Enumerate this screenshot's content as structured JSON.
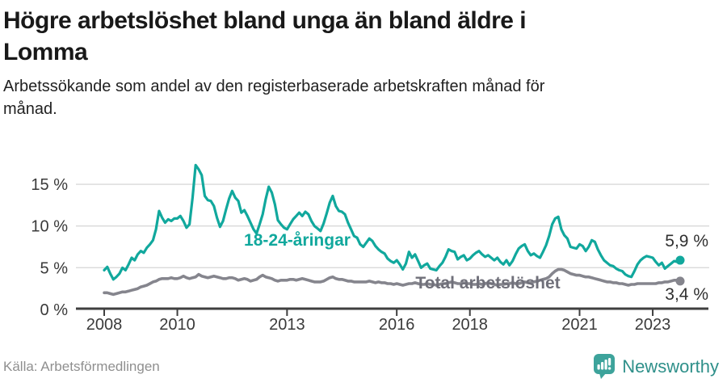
{
  "header": {
    "title": "Högre arbetslöshet bland unga än bland äldre i\nLomma",
    "subtitle": "Arbetssökande som andel av den registerbaserade arbetskraften månad för\nmånad."
  },
  "footer": {
    "source": "Källa: Arbetsförmedlingen",
    "logo_name": "Newsworthy",
    "logo_icon": "newsworthy-bubble-chart-icon"
  },
  "colors": {
    "youth_line": "#11a89d",
    "total_line": "#85858d",
    "total_label": "#70707a",
    "grid": "#d9d9d9",
    "axis": "#3f3f3f",
    "value_label": "#303030",
    "logo_bubble": "#3da39b",
    "logo_text": "#2f908a"
  },
  "chart_data": {
    "type": "line",
    "title": "Arbetssökande som andel av den registerbaserade arbetskraften månad för månad",
    "x_start": "2008-01",
    "x_end": "2023-10",
    "x_unit": "month",
    "ylim": [
      0,
      18
    ],
    "grid": "horizontal",
    "legend_position": "inline-labels",
    "y_ticks": [
      {
        "value": 0,
        "label": "0 %"
      },
      {
        "value": 5,
        "label": "5 %"
      },
      {
        "value": 10,
        "label": "10 %"
      },
      {
        "value": 15,
        "label": "15 %"
      }
    ],
    "x_ticks": [
      {
        "year": 2008,
        "label": "2008"
      },
      {
        "year": 2010,
        "label": "2010"
      },
      {
        "year": 2013,
        "label": "2013"
      },
      {
        "year": 2016,
        "label": "2016"
      },
      {
        "year": 2018,
        "label": "2018"
      },
      {
        "year": 2021,
        "label": "2021"
      },
      {
        "year": 2023,
        "label": "2023"
      }
    ],
    "series": [
      {
        "name": "18-24-åringar",
        "end_label": "5,9 %",
        "end_value": 5.9,
        "values": [
          4.7,
          5.1,
          4.3,
          3.6,
          3.9,
          4.3,
          5.0,
          4.7,
          5.4,
          6.2,
          5.9,
          6.6,
          7.0,
          6.8,
          7.4,
          7.8,
          8.3,
          9.6,
          11.8,
          11.0,
          10.4,
          10.8,
          10.6,
          10.9,
          10.9,
          11.2,
          10.6,
          9.8,
          10.2,
          13.4,
          17.3,
          16.8,
          16.1,
          13.6,
          13.1,
          13.0,
          12.4,
          11.0,
          9.9,
          10.6,
          12.0,
          13.3,
          14.2,
          13.4,
          13.0,
          11.6,
          11.9,
          11.2,
          10.4,
          9.6,
          9.1,
          10.2,
          11.4,
          13.2,
          14.7,
          14.0,
          12.6,
          10.7,
          10.2,
          9.8,
          9.6,
          10.2,
          10.8,
          11.2,
          11.6,
          11.2,
          11.7,
          11.4,
          10.6,
          10.0,
          9.7,
          9.4,
          10.3,
          11.5,
          12.8,
          13.6,
          12.4,
          11.8,
          11.7,
          11.4,
          10.4,
          9.6,
          8.8,
          8.6,
          7.8,
          7.5,
          8.0,
          8.5,
          8.2,
          7.6,
          7.2,
          6.9,
          6.7,
          6.1,
          5.8,
          5.6,
          5.9,
          5.4,
          4.8,
          5.5,
          6.9,
          6.2,
          6.6,
          5.8,
          5.0,
          5.3,
          5.5,
          4.9,
          4.8,
          4.7,
          5.2,
          5.6,
          6.3,
          7.2,
          7.0,
          6.9,
          6.0,
          6.3,
          6.5,
          5.9,
          6.1,
          6.5,
          6.8,
          7.0,
          6.6,
          6.3,
          6.5,
          6.2,
          5.9,
          6.2,
          5.7,
          5.4,
          5.9,
          5.3,
          5.8,
          6.6,
          7.3,
          7.6,
          7.8,
          7.0,
          6.5,
          6.7,
          6.4,
          6.2,
          6.9,
          7.7,
          8.8,
          10.2,
          10.9,
          11.1,
          9.6,
          8.9,
          8.5,
          7.5,
          7.4,
          7.3,
          7.8,
          7.6,
          7.0,
          7.5,
          8.3,
          8.1,
          7.2,
          6.5,
          5.9,
          5.6,
          5.3,
          5.2,
          4.9,
          4.7,
          4.6,
          4.2,
          4.0,
          3.9,
          4.6,
          5.4,
          5.9,
          6.2,
          6.4,
          6.3,
          6.2,
          5.7,
          5.3,
          5.6,
          4.9,
          5.2,
          5.5,
          5.8,
          5.7,
          5.9
        ]
      },
      {
        "name": "Total arbetslöshet",
        "end_label": "3,4 %",
        "end_value": 3.4,
        "values": [
          2.0,
          2.0,
          1.9,
          1.8,
          1.9,
          2.0,
          2.1,
          2.1,
          2.2,
          2.3,
          2.4,
          2.5,
          2.7,
          2.8,
          2.9,
          3.1,
          3.3,
          3.4,
          3.6,
          3.7,
          3.7,
          3.7,
          3.8,
          3.7,
          3.7,
          3.8,
          4.0,
          3.8,
          3.7,
          3.8,
          3.9,
          4.2,
          4.0,
          3.9,
          3.8,
          3.9,
          4.0,
          3.9,
          3.8,
          3.7,
          3.7,
          3.8,
          3.8,
          3.7,
          3.5,
          3.6,
          3.7,
          3.6,
          3.4,
          3.5,
          3.6,
          3.9,
          4.1,
          3.9,
          3.8,
          3.7,
          3.5,
          3.4,
          3.5,
          3.5,
          3.5,
          3.6,
          3.6,
          3.5,
          3.6,
          3.7,
          3.6,
          3.5,
          3.4,
          3.3,
          3.3,
          3.3,
          3.4,
          3.6,
          3.8,
          3.9,
          3.7,
          3.6,
          3.6,
          3.5,
          3.4,
          3.4,
          3.3,
          3.3,
          3.3,
          3.3,
          3.3,
          3.4,
          3.3,
          3.2,
          3.3,
          3.2,
          3.2,
          3.1,
          3.1,
          3.0,
          3.1,
          3.0,
          2.9,
          3.0,
          3.1,
          3.1,
          3.2,
          3.1,
          3.0,
          3.0,
          3.1,
          3.0,
          3.0,
          2.9,
          3.0,
          3.1,
          3.1,
          3.2,
          3.3,
          3.2,
          3.1,
          3.1,
          3.2,
          3.1,
          3.1,
          3.0,
          3.0,
          3.1,
          3.0,
          3.1,
          3.2,
          3.1,
          3.0,
          2.9,
          3.0,
          3.0,
          3.1,
          3.1,
          3.2,
          3.1,
          3.1,
          3.2,
          3.3,
          3.2,
          3.2,
          3.3,
          3.4,
          3.5,
          3.6,
          3.7,
          3.9,
          4.3,
          4.6,
          4.8,
          4.8,
          4.7,
          4.5,
          4.3,
          4.2,
          4.1,
          4.1,
          4.0,
          3.9,
          3.9,
          3.8,
          3.7,
          3.6,
          3.5,
          3.4,
          3.3,
          3.3,
          3.2,
          3.2,
          3.1,
          3.1,
          3.0,
          2.9,
          3.0,
          3.0,
          3.1,
          3.1,
          3.1,
          3.1,
          3.1,
          3.1,
          3.1,
          3.2,
          3.2,
          3.3,
          3.3,
          3.4,
          3.5,
          3.5,
          3.4
        ]
      }
    ]
  }
}
